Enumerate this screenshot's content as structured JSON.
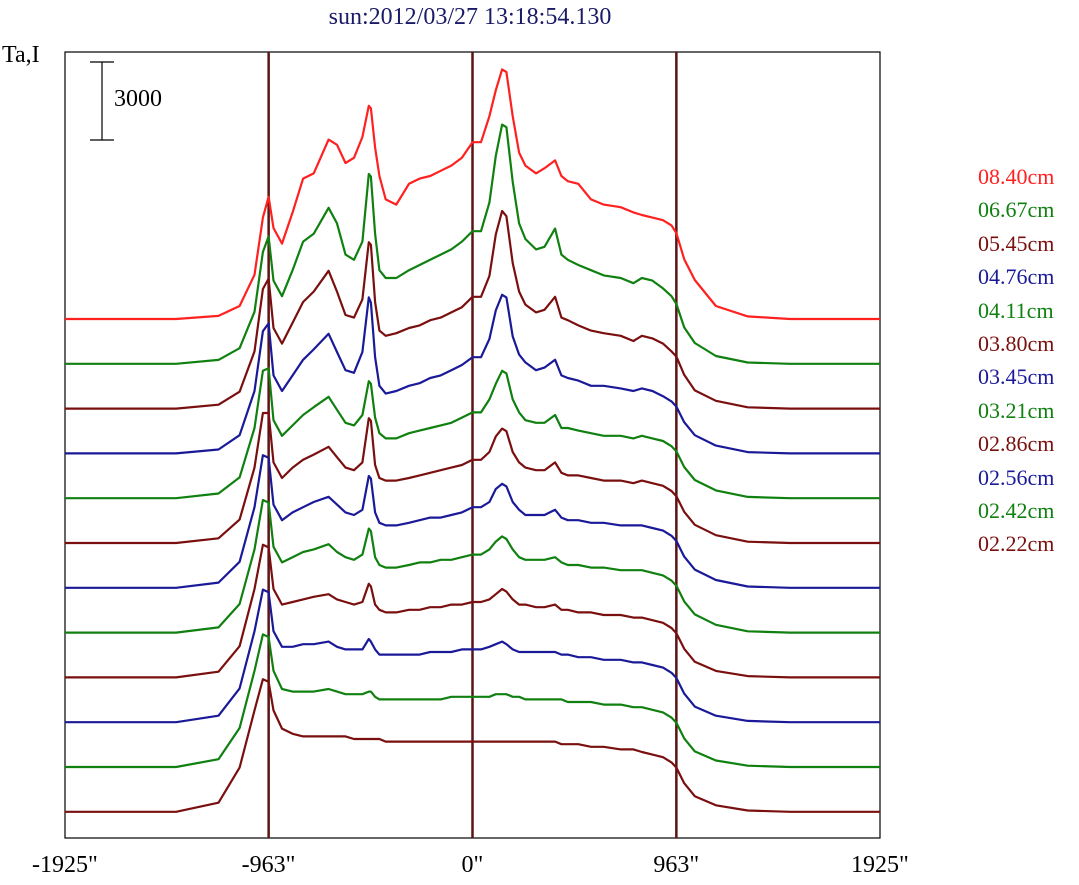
{
  "chart_data": {
    "type": "line",
    "title": "sun:2012/03/27 13:18:54.130",
    "ylabel": "Ta,I",
    "scale_bar_label": "3000",
    "scale_bar_value": 3000,
    "xlim": [
      -1925,
      1925
    ],
    "x_ticks": [
      {
        "value": -1925,
        "label": "-1925\""
      },
      {
        "value": -963,
        "label": "-963\""
      },
      {
        "value": 0,
        "label": "0\""
      },
      {
        "value": 963,
        "label": "963\""
      },
      {
        "value": 1925,
        "label": "1925\""
      }
    ],
    "vertical_markers": [
      -963,
      0,
      963
    ],
    "profile_x": [
      -1925,
      -1400,
      -1200,
      -1100,
      -1030,
      -990,
      -963,
      -940,
      -900,
      -850,
      -800,
      -750,
      -680,
      -640,
      -600,
      -560,
      -520,
      -490,
      -480,
      -460,
      -440,
      -410,
      -360,
      -300,
      -250,
      -200,
      -150,
      -100,
      -50,
      0,
      40,
      80,
      110,
      140,
      160,
      190,
      220,
      250,
      300,
      340,
      390,
      420,
      450,
      500,
      560,
      620,
      700,
      760,
      800,
      850,
      900,
      940,
      963,
      1000,
      1050,
      1150,
      1300,
      1500,
      1925
    ],
    "series": [
      {
        "name": "08.40cm",
        "color": "#ff2020",
        "values": [
          0,
          0,
          120,
          500,
          1700,
          3900,
          4700,
          3500,
          2900,
          4100,
          5400,
          5600,
          6900,
          6700,
          6000,
          6200,
          7000,
          8200,
          8100,
          6600,
          5500,
          4600,
          4400,
          5200,
          5400,
          5500,
          5700,
          5900,
          6200,
          6800,
          6800,
          7800,
          8800,
          9600,
          9500,
          7800,
          6400,
          5900,
          5600,
          5800,
          6100,
          5500,
          5300,
          5200,
          4600,
          4400,
          4300,
          4100,
          4000,
          3900,
          3800,
          3600,
          3300,
          2300,
          1500,
          500,
          100,
          0,
          0
        ]
      },
      {
        "name": "06.67cm",
        "color": "#108010",
        "values": [
          0,
          0,
          150,
          600,
          2000,
          4300,
          4900,
          3200,
          2600,
          3600,
          4700,
          5000,
          6000,
          5400,
          4200,
          4000,
          4700,
          7300,
          7200,
          5000,
          3600,
          3300,
          3300,
          3600,
          3800,
          4000,
          4200,
          4400,
          4700,
          5100,
          5100,
          6200,
          8000,
          9200,
          9100,
          7000,
          5400,
          4800,
          4400,
          4500,
          5200,
          4200,
          4000,
          3800,
          3600,
          3400,
          3300,
          3100,
          3300,
          3200,
          2900,
          2600,
          2300,
          1400,
          800,
          300,
          50,
          0,
          0
        ]
      },
      {
        "name": "05.45cm",
        "color": "#7a0f0f",
        "values": [
          0,
          0,
          150,
          650,
          2200,
          4600,
          5000,
          3100,
          2500,
          3300,
          4100,
          4500,
          5300,
          4500,
          3600,
          3500,
          4200,
          6400,
          6300,
          4100,
          3000,
          2800,
          2900,
          3100,
          3200,
          3400,
          3500,
          3700,
          3900,
          4300,
          4300,
          5100,
          6700,
          7600,
          7400,
          5600,
          4500,
          4000,
          3700,
          3800,
          4300,
          3500,
          3400,
          3200,
          3000,
          2900,
          2800,
          2600,
          2800,
          2700,
          2500,
          2200,
          2000,
          1300,
          700,
          300,
          50,
          0,
          0
        ]
      },
      {
        "name": "04.76cm",
        "color": "#1a1a99",
        "values": [
          0,
          0,
          150,
          700,
          2400,
          4700,
          5000,
          3000,
          2400,
          3000,
          3600,
          4000,
          4600,
          3900,
          3200,
          3100,
          3900,
          6000,
          5800,
          3700,
          2600,
          2300,
          2400,
          2600,
          2700,
          2900,
          3000,
          3200,
          3400,
          3700,
          3700,
          4400,
          5500,
          6100,
          6000,
          4500,
          3800,
          3500,
          3200,
          3300,
          3600,
          3000,
          2900,
          2800,
          2600,
          2600,
          2500,
          2400,
          2500,
          2400,
          2200,
          2000,
          1800,
          1200,
          700,
          300,
          50,
          0,
          0
        ]
      },
      {
        "name": "04.11cm",
        "color": "#108010",
        "values": [
          0,
          0,
          180,
          800,
          2700,
          4900,
          5000,
          3000,
          2400,
          2800,
          3200,
          3500,
          3900,
          3400,
          2900,
          2800,
          3200,
          4500,
          4400,
          3100,
          2500,
          2300,
          2300,
          2500,
          2600,
          2700,
          2800,
          2900,
          3100,
          3300,
          3300,
          3800,
          4400,
          4900,
          4800,
          3800,
          3300,
          3000,
          2900,
          2900,
          3200,
          2700,
          2700,
          2600,
          2500,
          2400,
          2400,
          2300,
          2400,
          2300,
          2200,
          2000,
          1800,
          1200,
          700,
          300,
          50,
          0,
          0
        ]
      },
      {
        "name": "03.80cm",
        "color": "#7a0f0f",
        "values": [
          0,
          0,
          180,
          900,
          2900,
          5000,
          5000,
          3100,
          2500,
          2900,
          3200,
          3400,
          3700,
          3300,
          2900,
          2800,
          3100,
          4800,
          4700,
          3000,
          2500,
          2400,
          2400,
          2500,
          2600,
          2700,
          2800,
          2900,
          3000,
          3200,
          3200,
          3500,
          4100,
          4400,
          4300,
          3500,
          3100,
          2900,
          2800,
          2800,
          3100,
          2700,
          2600,
          2600,
          2500,
          2400,
          2400,
          2300,
          2400,
          2300,
          2200,
          2000,
          1800,
          1200,
          700,
          300,
          50,
          0,
          0
        ]
      },
      {
        "name": "03.45cm",
        "color": "#1a1a99",
        "values": [
          0,
          0,
          200,
          1000,
          3100,
          5100,
          5000,
          3200,
          2600,
          2900,
          3100,
          3300,
          3500,
          3200,
          2900,
          2800,
          3000,
          4300,
          4200,
          2900,
          2500,
          2400,
          2400,
          2500,
          2600,
          2700,
          2700,
          2800,
          2900,
          3100,
          3100,
          3300,
          3800,
          4000,
          3900,
          3300,
          3000,
          2800,
          2800,
          2800,
          3000,
          2700,
          2600,
          2600,
          2500,
          2500,
          2400,
          2400,
          2400,
          2300,
          2200,
          2000,
          1800,
          1200,
          700,
          300,
          50,
          0,
          0
        ]
      },
      {
        "name": "03.21cm",
        "color": "#108010",
        "values": [
          0,
          0,
          200,
          1100,
          3200,
          5100,
          5000,
          3300,
          2700,
          2900,
          3100,
          3200,
          3400,
          3100,
          2900,
          2800,
          3000,
          4000,
          3900,
          2900,
          2600,
          2500,
          2500,
          2600,
          2700,
          2700,
          2800,
          2800,
          2900,
          3000,
          3000,
          3200,
          3500,
          3700,
          3600,
          3200,
          2900,
          2800,
          2800,
          2800,
          2900,
          2700,
          2600,
          2600,
          2500,
          2500,
          2400,
          2400,
          2400,
          2300,
          2200,
          2000,
          1800,
          1200,
          700,
          300,
          50,
          0,
          0
        ]
      },
      {
        "name": "02.86cm",
        "color": "#7a0f0f",
        "values": [
          0,
          0,
          220,
          1200,
          3400,
          5100,
          5000,
          3400,
          2800,
          2900,
          3000,
          3100,
          3200,
          3000,
          2900,
          2800,
          2900,
          3600,
          3500,
          2800,
          2600,
          2500,
          2500,
          2600,
          2600,
          2700,
          2700,
          2800,
          2800,
          2900,
          2900,
          3000,
          3200,
          3400,
          3300,
          3000,
          2800,
          2800,
          2700,
          2700,
          2800,
          2600,
          2600,
          2500,
          2500,
          2400,
          2400,
          2300,
          2300,
          2200,
          2100,
          1900,
          1700,
          1100,
          600,
          250,
          50,
          0,
          0
        ]
      },
      {
        "name": "02.56cm",
        "color": "#1a1a99",
        "values": [
          0,
          0,
          250,
          1300,
          3500,
          5100,
          5000,
          3500,
          2900,
          2900,
          3000,
          3000,
          3100,
          2900,
          2800,
          2800,
          2800,
          3200,
          3100,
          2800,
          2600,
          2600,
          2600,
          2600,
          2600,
          2700,
          2700,
          2700,
          2800,
          2800,
          2800,
          2900,
          3000,
          3100,
          3000,
          2800,
          2700,
          2700,
          2700,
          2700,
          2700,
          2600,
          2600,
          2500,
          2500,
          2400,
          2400,
          2300,
          2300,
          2200,
          2100,
          1900,
          1700,
          1100,
          600,
          250,
          50,
          0,
          0
        ]
      },
      {
        "name": "02.42cm",
        "color": "#108010",
        "values": [
          0,
          0,
          300,
          1500,
          3700,
          5100,
          5000,
          3700,
          3000,
          2900,
          2900,
          2900,
          3000,
          2900,
          2800,
          2800,
          2800,
          2900,
          2900,
          2700,
          2600,
          2600,
          2600,
          2600,
          2600,
          2600,
          2600,
          2700,
          2700,
          2700,
          2700,
          2700,
          2800,
          2800,
          2800,
          2700,
          2700,
          2600,
          2600,
          2600,
          2600,
          2600,
          2500,
          2500,
          2500,
          2400,
          2400,
          2300,
          2300,
          2200,
          2100,
          1900,
          1700,
          1100,
          600,
          250,
          50,
          0,
          0
        ]
      },
      {
        "name": "02.22cm",
        "color": "#7a0f0f",
        "values": [
          0,
          0,
          350,
          1700,
          3900,
          5100,
          5000,
          3900,
          3200,
          3000,
          2900,
          2900,
          2900,
          2900,
          2900,
          2800,
          2800,
          2800,
          2800,
          2800,
          2800,
          2700,
          2700,
          2700,
          2700,
          2700,
          2700,
          2700,
          2700,
          2700,
          2700,
          2700,
          2700,
          2700,
          2700,
          2700,
          2700,
          2700,
          2700,
          2700,
          2700,
          2600,
          2600,
          2600,
          2500,
          2500,
          2400,
          2400,
          2300,
          2200,
          2100,
          1900,
          1700,
          1100,
          600,
          250,
          50,
          0,
          0
        ]
      }
    ]
  }
}
